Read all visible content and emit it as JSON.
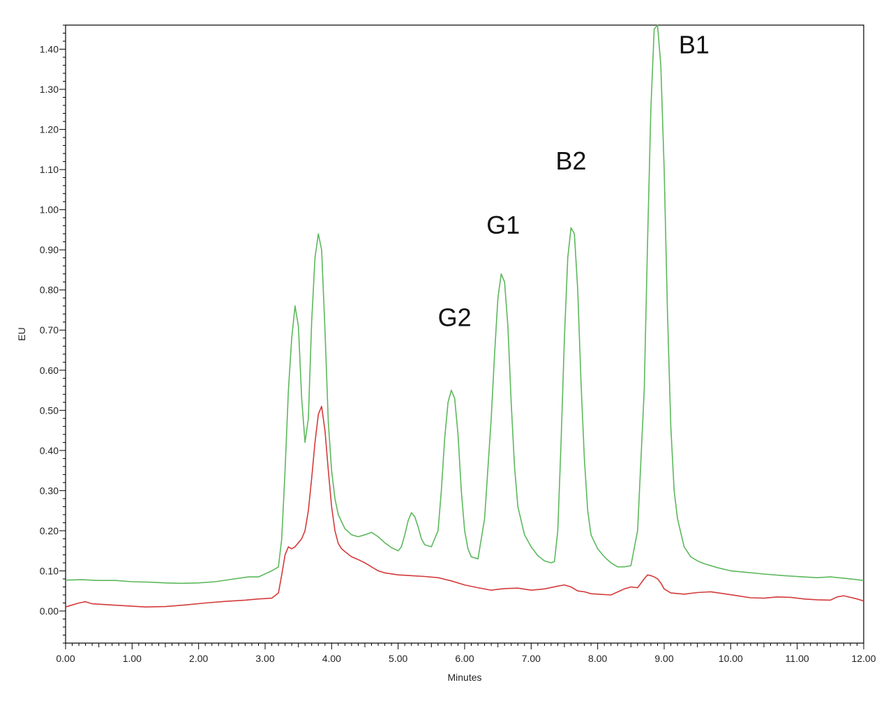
{
  "chart_data": {
    "type": "line",
    "title": "",
    "xlabel": "Minutes",
    "ylabel": "EU",
    "xlim": [
      0,
      12
    ],
    "ylim": [
      -0.08,
      1.46
    ],
    "grid": false,
    "legend": "none",
    "x_ticks": [
      0,
      1,
      2,
      3,
      4,
      5,
      6,
      7,
      8,
      9,
      10,
      11,
      12
    ],
    "x_tick_labels": [
      "0.00",
      "1.00",
      "2.00",
      "3.00",
      "4.00",
      "5.00",
      "6.00",
      "7.00",
      "8.00",
      "9.00",
      "10.00",
      "11.00",
      "12.00"
    ],
    "y_ticks": [
      0,
      0.1,
      0.2,
      0.3,
      0.4,
      0.5,
      0.6,
      0.7,
      0.8,
      0.9,
      1.0,
      1.1,
      1.2,
      1.3,
      1.4
    ],
    "y_tick_labels": [
      "0.00",
      "0.10",
      "0.20",
      "0.30",
      "0.40",
      "0.50",
      "0.60",
      "0.70",
      "0.80",
      "0.90",
      "1.00",
      "1.10",
      "1.20",
      "1.30",
      "1.40"
    ],
    "annotations": [
      {
        "text": "G2",
        "x": 5.85,
        "y": 0.71
      },
      {
        "text": "G1",
        "x": 6.58,
        "y": 0.94
      },
      {
        "text": "B2",
        "x": 7.6,
        "y": 1.1
      },
      {
        "text": "B1",
        "x": 9.45,
        "y": 1.39
      }
    ],
    "series": [
      {
        "color": "#5cb85c",
        "x": [
          0,
          0.25,
          0.5,
          0.75,
          1.0,
          1.25,
          1.5,
          1.75,
          2.0,
          2.25,
          2.5,
          2.75,
          2.9,
          3.1,
          3.2,
          3.25,
          3.3,
          3.35,
          3.4,
          3.45,
          3.5,
          3.55,
          3.6,
          3.65,
          3.7,
          3.75,
          3.8,
          3.85,
          3.9,
          3.95,
          4.0,
          4.05,
          4.1,
          4.2,
          4.3,
          4.4,
          4.5,
          4.6,
          4.7,
          4.8,
          4.9,
          5.0,
          5.05,
          5.1,
          5.15,
          5.2,
          5.25,
          5.3,
          5.35,
          5.4,
          5.5,
          5.6,
          5.65,
          5.7,
          5.75,
          5.8,
          5.85,
          5.9,
          5.95,
          6.0,
          6.05,
          6.1,
          6.2,
          6.3,
          6.4,
          6.45,
          6.5,
          6.55,
          6.6,
          6.65,
          6.7,
          6.75,
          6.8,
          6.9,
          7.0,
          7.1,
          7.2,
          7.3,
          7.35,
          7.4,
          7.45,
          7.5,
          7.55,
          7.6,
          7.65,
          7.7,
          7.75,
          7.8,
          7.85,
          7.9,
          8.0,
          8.1,
          8.2,
          8.3,
          8.4,
          8.5,
          8.6,
          8.7,
          8.75,
          8.8,
          8.85,
          8.9,
          8.95,
          9.0,
          9.05,
          9.1,
          9.15,
          9.2,
          9.3,
          9.4,
          9.5,
          9.6,
          9.8,
          10.0,
          10.2,
          10.5,
          10.8,
          11.0,
          11.3,
          11.5,
          11.8,
          12.0
        ],
        "y": [
          0.077,
          0.078,
          0.076,
          0.076,
          0.073,
          0.072,
          0.07,
          0.069,
          0.07,
          0.073,
          0.079,
          0.085,
          0.085,
          0.1,
          0.11,
          0.18,
          0.35,
          0.55,
          0.68,
          0.76,
          0.71,
          0.53,
          0.42,
          0.48,
          0.72,
          0.88,
          0.94,
          0.9,
          0.7,
          0.47,
          0.35,
          0.28,
          0.24,
          0.205,
          0.19,
          0.185,
          0.19,
          0.196,
          0.185,
          0.17,
          0.158,
          0.15,
          0.16,
          0.19,
          0.225,
          0.245,
          0.235,
          0.21,
          0.18,
          0.165,
          0.16,
          0.2,
          0.3,
          0.43,
          0.52,
          0.55,
          0.53,
          0.44,
          0.3,
          0.2,
          0.155,
          0.135,
          0.13,
          0.23,
          0.48,
          0.64,
          0.78,
          0.84,
          0.82,
          0.71,
          0.52,
          0.36,
          0.26,
          0.19,
          0.16,
          0.138,
          0.125,
          0.12,
          0.123,
          0.2,
          0.42,
          0.68,
          0.88,
          0.955,
          0.94,
          0.8,
          0.57,
          0.38,
          0.25,
          0.19,
          0.155,
          0.135,
          0.12,
          0.11,
          0.11,
          0.113,
          0.2,
          0.55,
          0.92,
          1.25,
          1.45,
          1.46,
          1.36,
          1.1,
          0.74,
          0.46,
          0.3,
          0.23,
          0.16,
          0.135,
          0.125,
          0.118,
          0.108,
          0.1,
          0.097,
          0.092,
          0.088,
          0.086,
          0.083,
          0.085,
          0.08,
          0.076
        ]
      },
      {
        "color": "#d43a3a",
        "x": [
          0,
          0.1,
          0.2,
          0.3,
          0.4,
          0.6,
          0.8,
          1.0,
          1.2,
          1.5,
          1.8,
          2.1,
          2.4,
          2.7,
          2.9,
          3.1,
          3.2,
          3.25,
          3.3,
          3.35,
          3.4,
          3.45,
          3.5,
          3.55,
          3.6,
          3.65,
          3.7,
          3.75,
          3.8,
          3.85,
          3.9,
          3.95,
          4.0,
          4.05,
          4.1,
          4.15,
          4.2,
          4.3,
          4.4,
          4.5,
          4.6,
          4.7,
          4.8,
          5.0,
          5.2,
          5.4,
          5.6,
          5.8,
          6.0,
          6.2,
          6.4,
          6.6,
          6.8,
          7.0,
          7.2,
          7.4,
          7.5,
          7.6,
          7.7,
          7.8,
          7.9,
          8.0,
          8.2,
          8.4,
          8.5,
          8.6,
          8.7,
          8.75,
          8.8,
          8.85,
          8.9,
          8.95,
          9.0,
          9.1,
          9.3,
          9.5,
          9.7,
          9.9,
          10.1,
          10.3,
          10.5,
          10.7,
          10.9,
          11.1,
          11.3,
          11.5,
          11.6,
          11.7,
          11.9,
          12.0
        ],
        "y": [
          0.01,
          0.015,
          0.02,
          0.023,
          0.018,
          0.016,
          0.014,
          0.012,
          0.01,
          0.011,
          0.015,
          0.02,
          0.024,
          0.027,
          0.03,
          0.032,
          0.045,
          0.09,
          0.14,
          0.16,
          0.155,
          0.16,
          0.17,
          0.18,
          0.2,
          0.25,
          0.33,
          0.42,
          0.49,
          0.51,
          0.45,
          0.35,
          0.26,
          0.2,
          0.168,
          0.155,
          0.148,
          0.135,
          0.128,
          0.12,
          0.11,
          0.1,
          0.095,
          0.09,
          0.088,
          0.086,
          0.083,
          0.075,
          0.065,
          0.058,
          0.052,
          0.056,
          0.057,
          0.052,
          0.055,
          0.062,
          0.065,
          0.06,
          0.05,
          0.048,
          0.043,
          0.042,
          0.04,
          0.055,
          0.06,
          0.058,
          0.08,
          0.09,
          0.088,
          0.085,
          0.08,
          0.07,
          0.055,
          0.045,
          0.042,
          0.046,
          0.048,
          0.043,
          0.038,
          0.033,
          0.032,
          0.035,
          0.034,
          0.03,
          0.028,
          0.027,
          0.035,
          0.038,
          0.03,
          0.025
        ]
      }
    ]
  }
}
